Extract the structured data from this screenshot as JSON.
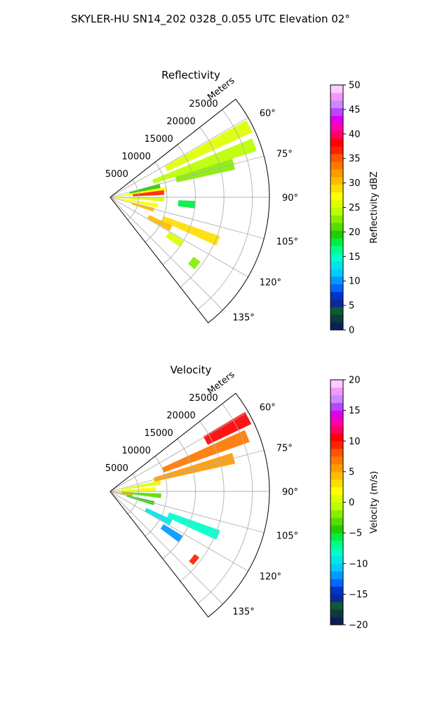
{
  "figure": {
    "suptitle": "SKYLER-HU  SN14_202  0328_0.055 UTC Elevation 02°"
  },
  "chart_data": [
    {
      "type": "ppi-sector",
      "title": "Reflectivity",
      "range_label": "Meters",
      "range_ticks": [
        5000,
        10000,
        15000,
        20000,
        25000
      ],
      "range_max": 28000,
      "azimuth_range_deg": [
        52,
        142
      ],
      "azimuth_ticks": [
        "60°",
        "75°",
        "90°",
        "105°",
        "120°",
        "135°"
      ],
      "colorbar": {
        "label": "Reflectivity dBZ",
        "range": [
          0,
          50
        ],
        "ticks": [
          "0",
          "5",
          "10",
          "15",
          "20",
          "25",
          "30",
          "35",
          "40",
          "45",
          "50"
        ],
        "colors": [
          "#0a1f5c",
          "#0f3a3a",
          "#0b5a3a",
          "#0a2a99",
          "#0033cc",
          "#0066ff",
          "#0099ff",
          "#00ccff",
          "#00e5e5",
          "#00ffcc",
          "#00ff88",
          "#00ee44",
          "#22cc00",
          "#55dd00",
          "#88ee00",
          "#bbff00",
          "#ddff00",
          "#ffff00",
          "#ffdd00",
          "#ffbb00",
          "#ff9900",
          "#ff7700",
          "#ff5500",
          "#ff2200",
          "#ff0000",
          "#ff0066",
          "#ff00aa",
          "#dd00ee",
          "#bb44ff",
          "#cc88ff",
          "#ee99ff",
          "#ffccff"
        ]
      },
      "cells": [
        {
          "az": 63,
          "r0": 11000,
          "r1": 27500,
          "value": 26
        },
        {
          "az": 70,
          "r0": 8000,
          "r1": 27000,
          "value": 24
        },
        {
          "az": 75,
          "r0": 12000,
          "r1": 22500,
          "value": 22
        },
        {
          "az": 77,
          "r0": 3500,
          "r1": 9000,
          "value": 20
        },
        {
          "az": 82,
          "r0": 1000,
          "r1": 10000,
          "value": 27
        },
        {
          "az": 85,
          "r0": 4000,
          "r1": 9500,
          "value": 36
        },
        {
          "az": 92,
          "r0": 0,
          "r1": 9500,
          "value": 26
        },
        {
          "az": 95,
          "r0": 12000,
          "r1": 15000,
          "value": 18
        },
        {
          "az": 100,
          "r0": 0,
          "r1": 8500,
          "value": 28
        },
        {
          "az": 106,
          "r0": 4000,
          "r1": 8000,
          "value": 31
        },
        {
          "az": 112,
          "r0": 10000,
          "r1": 20500,
          "value": 29
        },
        {
          "az": 117,
          "r0": 7500,
          "r1": 12000,
          "value": 30
        },
        {
          "az": 123,
          "r0": 12000,
          "r1": 15000,
          "value": 26
        },
        {
          "az": 128,
          "r0": 18000,
          "r1": 19500,
          "value": 22
        }
      ]
    },
    {
      "type": "ppi-sector",
      "title": "Velocity",
      "range_label": "Meters",
      "range_ticks": [
        5000,
        10000,
        15000,
        20000,
        25000
      ],
      "range_max": 28000,
      "azimuth_range_deg": [
        52,
        142
      ],
      "azimuth_ticks": [
        "60°",
        "75°",
        "90°",
        "105°",
        "120°",
        "135°"
      ],
      "colorbar": {
        "label": "Velocity (m/s)",
        "range": [
          -20,
          20
        ],
        "ticks": [
          "−20",
          "−15",
          "−10",
          "−5",
          "0",
          "5",
          "10",
          "15",
          "20"
        ],
        "colors": [
          "#0a1f5c",
          "#0f3a3a",
          "#0b5a3a",
          "#0a2a99",
          "#0033cc",
          "#0066ff",
          "#0099ff",
          "#00ccff",
          "#00e5e5",
          "#00ffcc",
          "#00ff88",
          "#00ee44",
          "#22cc00",
          "#55dd00",
          "#88ee00",
          "#bbff00",
          "#ddff00",
          "#ffff00",
          "#ffdd00",
          "#ffbb00",
          "#ff9900",
          "#ff7700",
          "#ff5500",
          "#ff2200",
          "#ff0000",
          "#ff0066",
          "#ff00aa",
          "#dd00ee",
          "#bb44ff",
          "#cc88ff",
          "#ee99ff",
          "#ffccff"
        ]
      },
      "cells": [
        {
          "az": 62,
          "r0": 19000,
          "r1": 27500,
          "value": 11
        },
        {
          "az": 68,
          "r0": 10000,
          "r1": 26000,
          "value": 7
        },
        {
          "az": 75,
          "r0": 8000,
          "r1": 22500,
          "value": 5
        },
        {
          "az": 80,
          "r0": 2000,
          "r1": 9000,
          "value": 1
        },
        {
          "az": 87,
          "r0": 0,
          "r1": 8000,
          "value": 2
        },
        {
          "az": 95,
          "r0": 2000,
          "r1": 9000,
          "value": -3
        },
        {
          "az": 100,
          "r0": 0,
          "r1": 4000,
          "value": 6
        },
        {
          "az": 105,
          "r0": 3000,
          "r1": 8000,
          "value": -5
        },
        {
          "az": 112,
          "r0": 11000,
          "r1": 20500,
          "value": -8
        },
        {
          "az": 117,
          "r0": 7000,
          "r1": 12000,
          "value": -10
        },
        {
          "az": 124,
          "r0": 11000,
          "r1": 15000,
          "value": -12
        },
        {
          "az": 129,
          "r0": 18500,
          "r1": 19500,
          "value": 9
        }
      ]
    }
  ]
}
